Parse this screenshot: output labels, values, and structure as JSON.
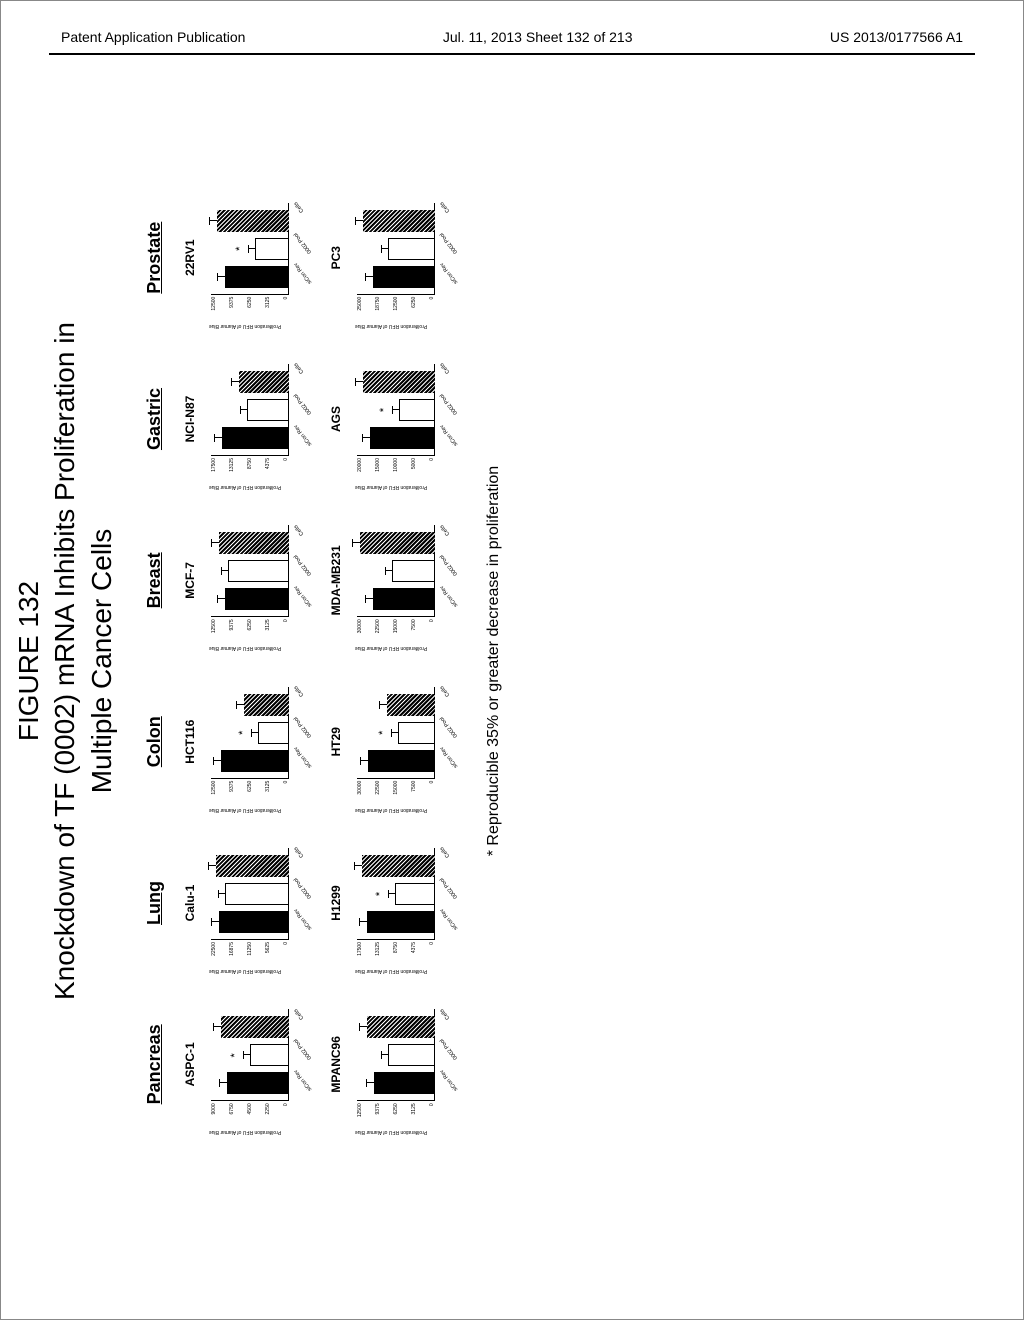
{
  "header": {
    "left": "Patent Application Publication",
    "mid": "Jul. 11, 2013  Sheet 132 of 213",
    "right": "US 2013/0177566 A1"
  },
  "figure": {
    "label": "FIGURE 132",
    "title_l1": "Knockdown of TF (0002) mRNA Inhibits Proliferation in",
    "title_l2": "Multiple Cancer Cells"
  },
  "tissues": [
    "Pancreas",
    "Lung",
    "Colon",
    "Breast",
    "Gastric",
    "Prostate"
  ],
  "axis": {
    "ylabel": "Proliferation\nRFU of Alamar Blue"
  },
  "xcats": [
    "siCon Rev",
    "0002 Pool",
    "Cells"
  ],
  "charts": [
    {
      "name": "ASPC-1",
      "ymax": 9000,
      "bars": [
        {
          "h": 0.8
        },
        {
          "h": 0.5,
          "light": true,
          "star": true
        },
        {
          "h": 0.88,
          "hatch": true
        }
      ]
    },
    {
      "name": "Calu-1",
      "ymax": 22500,
      "bars": [
        {
          "h": 0.9
        },
        {
          "h": 0.82,
          "light": true
        },
        {
          "h": 0.94,
          "hatch": true
        }
      ]
    },
    {
      "name": "HCT116",
      "ymax": 12500,
      "bars": [
        {
          "h": 0.88
        },
        {
          "h": 0.4,
          "light": true,
          "star": true
        },
        {
          "h": 0.58,
          "hatch": true
        }
      ]
    },
    {
      "name": "MCF-7",
      "ymax": 12500,
      "bars": [
        {
          "h": 0.82
        },
        {
          "h": 0.78,
          "light": true
        },
        {
          "h": 0.9,
          "hatch": true
        }
      ]
    },
    {
      "name": "NCI-N87",
      "ymax": 17500,
      "bars": [
        {
          "h": 0.86
        },
        {
          "h": 0.54,
          "light": true
        },
        {
          "h": 0.64,
          "hatch": true
        }
      ]
    },
    {
      "name": "22RV1",
      "ymax": 12500,
      "bars": [
        {
          "h": 0.82
        },
        {
          "h": 0.44,
          "light": true,
          "star": true
        },
        {
          "h": 0.92,
          "hatch": true
        }
      ]
    },
    {
      "name": "MPANC96",
      "ymax": 12500,
      "bars": [
        {
          "h": 0.78
        },
        {
          "h": 0.6,
          "light": true
        },
        {
          "h": 0.88,
          "hatch": true
        }
      ]
    },
    {
      "name": "H1299",
      "ymax": 17500,
      "bars": [
        {
          "h": 0.88
        },
        {
          "h": 0.52,
          "light": true,
          "star": true
        },
        {
          "h": 0.94,
          "hatch": true
        }
      ]
    },
    {
      "name": "HT29",
      "ymax": 30000,
      "bars": [
        {
          "h": 0.86
        },
        {
          "h": 0.48,
          "light": true,
          "star": true
        },
        {
          "h": 0.62,
          "hatch": true
        }
      ]
    },
    {
      "name": "MDA-MB231",
      "ymax": 30000,
      "bars": [
        {
          "h": 0.8
        },
        {
          "h": 0.56,
          "light": true
        },
        {
          "h": 0.96,
          "hatch": true
        }
      ]
    },
    {
      "name": "AGS",
      "ymax": 20000,
      "bars": [
        {
          "h": 0.84
        },
        {
          "h": 0.46,
          "light": true,
          "star": true
        },
        {
          "h": 0.92,
          "hatch": true
        }
      ]
    },
    {
      "name": "PC3",
      "ymax": 25000,
      "bars": [
        {
          "h": 0.8
        },
        {
          "h": 0.6,
          "light": true
        },
        {
          "h": 0.92,
          "hatch": true
        }
      ]
    }
  ],
  "footnote": "* Reproducible 35% or greater decrease in proliferation"
}
